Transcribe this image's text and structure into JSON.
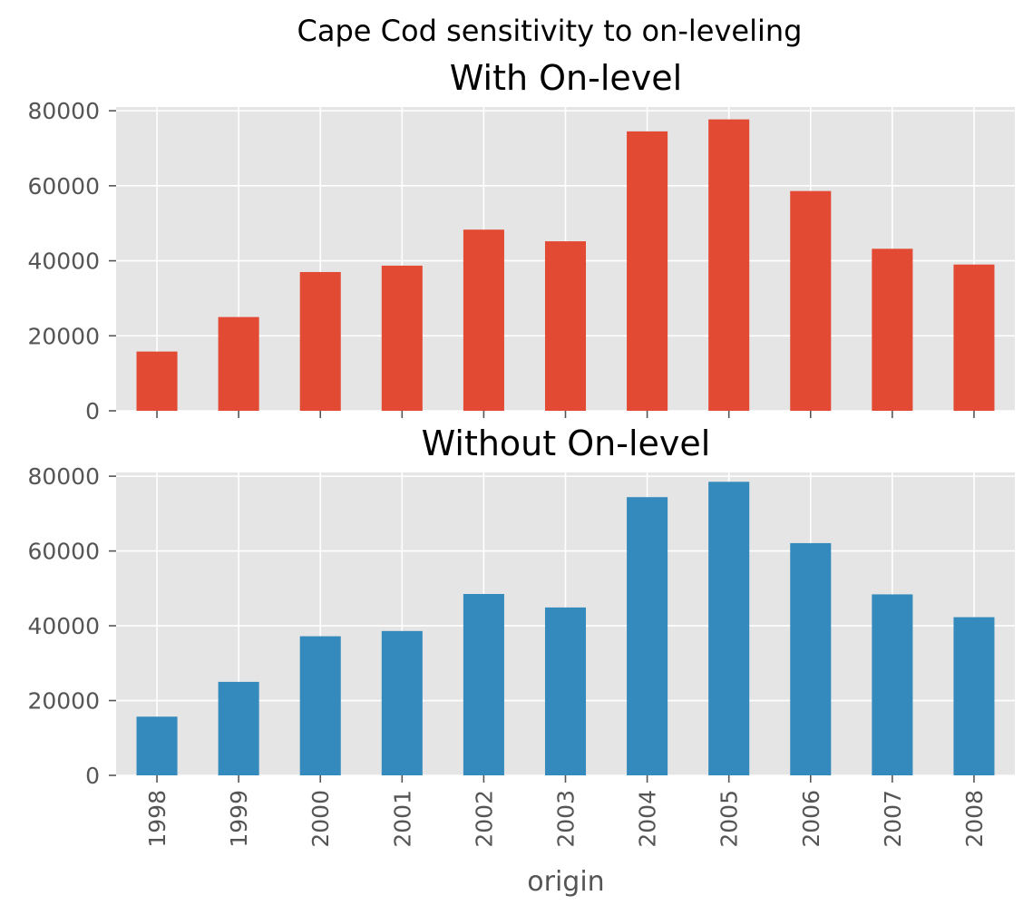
{
  "suptitle": "Cape Cod sensitivity to on-leveling",
  "colors": {
    "background": "#E5E5E5",
    "grid": "#FFFFFF",
    "tick_text": "#555555"
  },
  "chart_data": [
    {
      "type": "bar",
      "title": "With On-level",
      "categories": [
        "1998",
        "1999",
        "2000",
        "2001",
        "2002",
        "2003",
        "2004",
        "2005",
        "2006",
        "2007",
        "2008"
      ],
      "values": [
        15800,
        25000,
        37000,
        38700,
        48300,
        45200,
        74500,
        77700,
        58600,
        43200,
        39000
      ],
      "color": "#E24A33",
      "ylim": [
        0,
        81000
      ],
      "yticks": [
        0,
        20000,
        40000,
        60000,
        80000
      ],
      "xlabel": "",
      "show_xticklabels": false,
      "grid": true
    },
    {
      "type": "bar",
      "title": "Without On-level",
      "categories": [
        "1998",
        "1999",
        "2000",
        "2001",
        "2002",
        "2003",
        "2004",
        "2005",
        "2006",
        "2007",
        "2008"
      ],
      "values": [
        15700,
        25000,
        37200,
        38600,
        48500,
        44900,
        74400,
        78500,
        62100,
        48400,
        42300
      ],
      "color": "#348ABD",
      "ylim": [
        0,
        81000
      ],
      "yticks": [
        0,
        20000,
        40000,
        60000,
        80000
      ],
      "xlabel": "origin",
      "show_xticklabels": true,
      "grid": true
    }
  ]
}
